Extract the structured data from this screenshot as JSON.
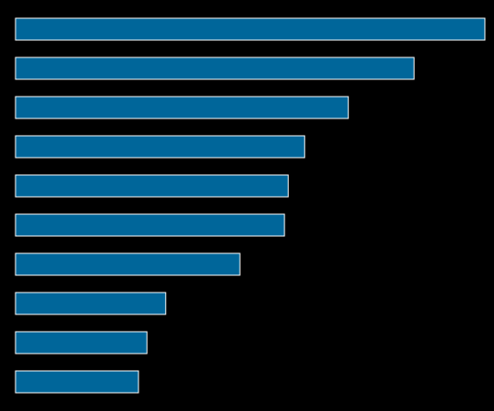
{
  "chart_data": {
    "type": "barh",
    "categories": [
      null,
      null,
      null,
      null,
      null,
      null,
      null,
      null,
      null,
      null
    ],
    "values": [
      100,
      84.9,
      70.9,
      61.6,
      58.1,
      57.3,
      47.8,
      32.0,
      28.0,
      26.2
    ],
    "color": "#00669a",
    "xlim": [
      0,
      100
    ]
  }
}
